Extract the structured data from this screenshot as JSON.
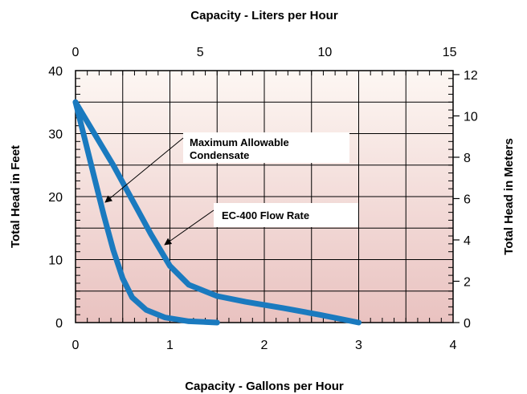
{
  "chart_data": {
    "type": "line",
    "title_top": "Capacity - Liters per Hour",
    "xlabel": "Capacity - Gallons per Hour",
    "ylabel_left": "Total Head in Feet",
    "ylabel_right": "Total Head in Meters",
    "xlim": [
      0,
      4
    ],
    "ylim": [
      0,
      40
    ],
    "x_ticks": [
      "0",
      "1",
      "2",
      "3",
      "4"
    ],
    "y_ticks": [
      "0",
      "10",
      "20",
      "30",
      "40"
    ],
    "x2_ticks": [
      "0",
      "5",
      "10",
      "15"
    ],
    "x2_values": [
      0,
      5,
      10,
      15
    ],
    "x2_scale": 3.785,
    "y2_ticks": [
      "0",
      "2",
      "4",
      "6",
      "8",
      "10",
      "12"
    ],
    "y2_values": [
      0,
      2,
      4,
      6,
      8,
      10,
      12
    ],
    "y2_scale": 0.3048,
    "grid": true,
    "series": [
      {
        "name": "Maximum Allowable Condensate",
        "color": "#1a7abf",
        "x": [
          0.0,
          0.1,
          0.2,
          0.3,
          0.4,
          0.5,
          0.6,
          0.75,
          0.95,
          1.2,
          1.5
        ],
        "y": [
          35,
          29,
          23,
          17,
          11.5,
          7,
          4,
          2,
          0.8,
          0.2,
          0
        ]
      },
      {
        "name": "EC-400 Flow Rate",
        "color": "#1a7abf",
        "x": [
          0.0,
          0.2,
          0.4,
          0.6,
          0.8,
          1.0,
          1.2,
          1.5,
          1.8,
          2.2,
          2.6,
          3.0
        ],
        "y": [
          35,
          30,
          25,
          19.5,
          14,
          9,
          6,
          4.2,
          3.3,
          2.3,
          1.2,
          0
        ]
      }
    ],
    "annotations": [
      {
        "text_lines": [
          "Maximum Allowable",
          "Condensate"
        ]
      },
      {
        "text_lines": [
          "EC-400 Flow Rate"
        ]
      }
    ]
  }
}
